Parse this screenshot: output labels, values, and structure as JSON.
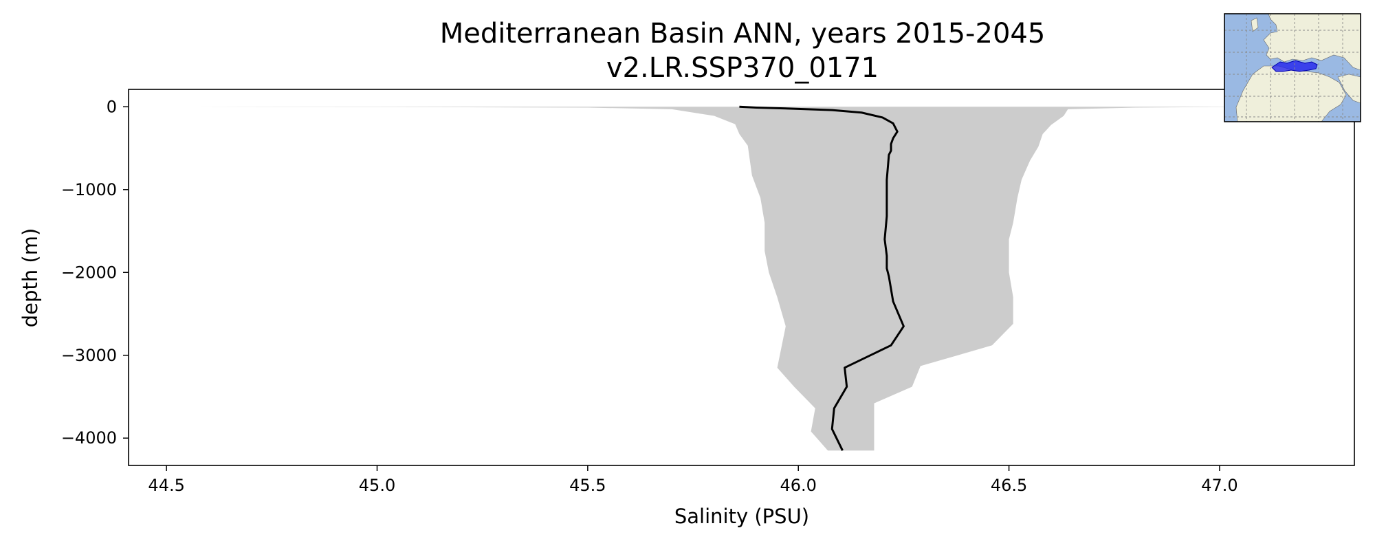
{
  "chart_data": {
    "type": "line",
    "title_lines": [
      "Mediterranean Basin ANN, years 2015-2045",
      "v2.LR.SSP370_0171"
    ],
    "xlabel": "Salinity (PSU)",
    "ylabel": "depth (m)",
    "xlim": [
      44.41,
      47.32
    ],
    "ylim": [
      -4330,
      210
    ],
    "xticks": [
      44.5,
      45.0,
      45.5,
      46.0,
      46.5,
      47.0
    ],
    "xtick_labels": [
      "44.5",
      "45.0",
      "45.5",
      "46.0",
      "46.5",
      "47.0"
    ],
    "yticks": [
      0,
      -1000,
      -2000,
      -3000,
      -4000
    ],
    "ytick_labels": [
      "0",
      "−1000",
      "−2000",
      "−3000",
      "−4000"
    ],
    "grid": false,
    "series": [
      {
        "kind": "line",
        "color": "#000000",
        "points": [
          [
            45.86,
            0
          ],
          [
            45.9,
            -10
          ],
          [
            46.0,
            -25
          ],
          [
            46.08,
            -40
          ],
          [
            46.15,
            -70
          ],
          [
            46.2,
            -130
          ],
          [
            46.225,
            -200
          ],
          [
            46.235,
            -300
          ],
          [
            46.225,
            -380
          ],
          [
            46.22,
            -450
          ],
          [
            46.22,
            -530
          ],
          [
            46.215,
            -580
          ],
          [
            46.21,
            -880
          ],
          [
            46.21,
            -1320
          ],
          [
            46.205,
            -1600
          ],
          [
            46.21,
            -1800
          ],
          [
            46.21,
            -1950
          ],
          [
            46.215,
            -2050
          ],
          [
            46.225,
            -2350
          ],
          [
            46.25,
            -2650
          ],
          [
            46.22,
            -2880
          ],
          [
            46.11,
            -3150
          ],
          [
            46.115,
            -3380
          ],
          [
            46.085,
            -3640
          ],
          [
            46.08,
            -3890
          ],
          [
            46.105,
            -4150
          ]
        ]
      },
      {
        "kind": "band",
        "color": "#cccccc",
        "lower": [
          [
            44.56,
            0
          ],
          [
            45.0,
            -3
          ],
          [
            45.5,
            -10
          ],
          [
            45.7,
            -30
          ],
          [
            45.8,
            -110
          ],
          [
            45.85,
            -210
          ],
          [
            45.86,
            -330
          ],
          [
            45.88,
            -470
          ],
          [
            45.89,
            -830
          ],
          [
            45.91,
            -1100
          ],
          [
            45.92,
            -1400
          ],
          [
            45.92,
            -1740
          ],
          [
            45.93,
            -2000
          ],
          [
            45.95,
            -2300
          ],
          [
            45.97,
            -2650
          ],
          [
            45.95,
            -3150
          ],
          [
            45.99,
            -3380
          ],
          [
            46.04,
            -3640
          ],
          [
            46.03,
            -3920
          ],
          [
            46.07,
            -4150
          ]
        ],
        "upper": [
          [
            47.32,
            0
          ],
          [
            47.0,
            -3
          ],
          [
            46.8,
            -10
          ],
          [
            46.64,
            -30
          ],
          [
            46.63,
            -110
          ],
          [
            46.6,
            -220
          ],
          [
            46.58,
            -330
          ],
          [
            46.57,
            -480
          ],
          [
            46.55,
            -650
          ],
          [
            46.53,
            -880
          ],
          [
            46.52,
            -1100
          ],
          [
            46.51,
            -1400
          ],
          [
            46.5,
            -1600
          ],
          [
            46.5,
            -2000
          ],
          [
            46.51,
            -2300
          ],
          [
            46.51,
            -2620
          ],
          [
            46.46,
            -2880
          ],
          [
            46.29,
            -3130
          ],
          [
            46.27,
            -3380
          ],
          [
            46.18,
            -3580
          ],
          [
            46.18,
            -3900
          ],
          [
            46.18,
            -4150
          ]
        ]
      }
    ],
    "inset_map": {
      "land_color": "#efefdb",
      "ocean_color": "#9ab9e3",
      "highlight_color": "#1a1aee",
      "gridlines": true
    }
  }
}
